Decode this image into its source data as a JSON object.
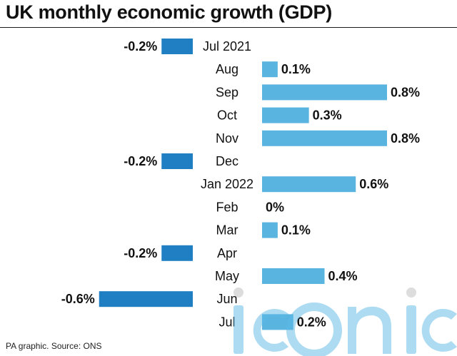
{
  "chart": {
    "title": "UK monthly economic growth (GDP)",
    "source": "PA graphic. Source: ONS",
    "watermark_text": "iconic"
  },
  "colors": {
    "positive": "#5ab4e0",
    "negative": "#1f7fc2",
    "text": "#111111",
    "rule": "#1a1a1a"
  },
  "chart_data": {
    "type": "bar",
    "orientation": "horizontal",
    "title": "UK monthly economic growth (GDP)",
    "categories": [
      "Jul 2021",
      "Aug",
      "Sep",
      "Oct",
      "Nov",
      "Dec",
      "Jan 2022",
      "Feb",
      "Mar",
      "Apr",
      "May",
      "Jun",
      "Jul"
    ],
    "values": [
      -0.2,
      0.1,
      0.8,
      0.3,
      0.8,
      -0.2,
      0.6,
      0,
      0.1,
      -0.2,
      0.4,
      -0.6,
      0.2
    ],
    "value_labels": [
      "-0.2%",
      "0.1%",
      "0.8%",
      "0.3%",
      "0.8%",
      "-0.2%",
      "0.6%",
      "0%",
      "0.1%",
      "-0.2%",
      "0.4%",
      "-0.6%",
      "0.2%"
    ],
    "xlabel": "",
    "ylabel": "",
    "grid": false,
    "legend": "none"
  }
}
